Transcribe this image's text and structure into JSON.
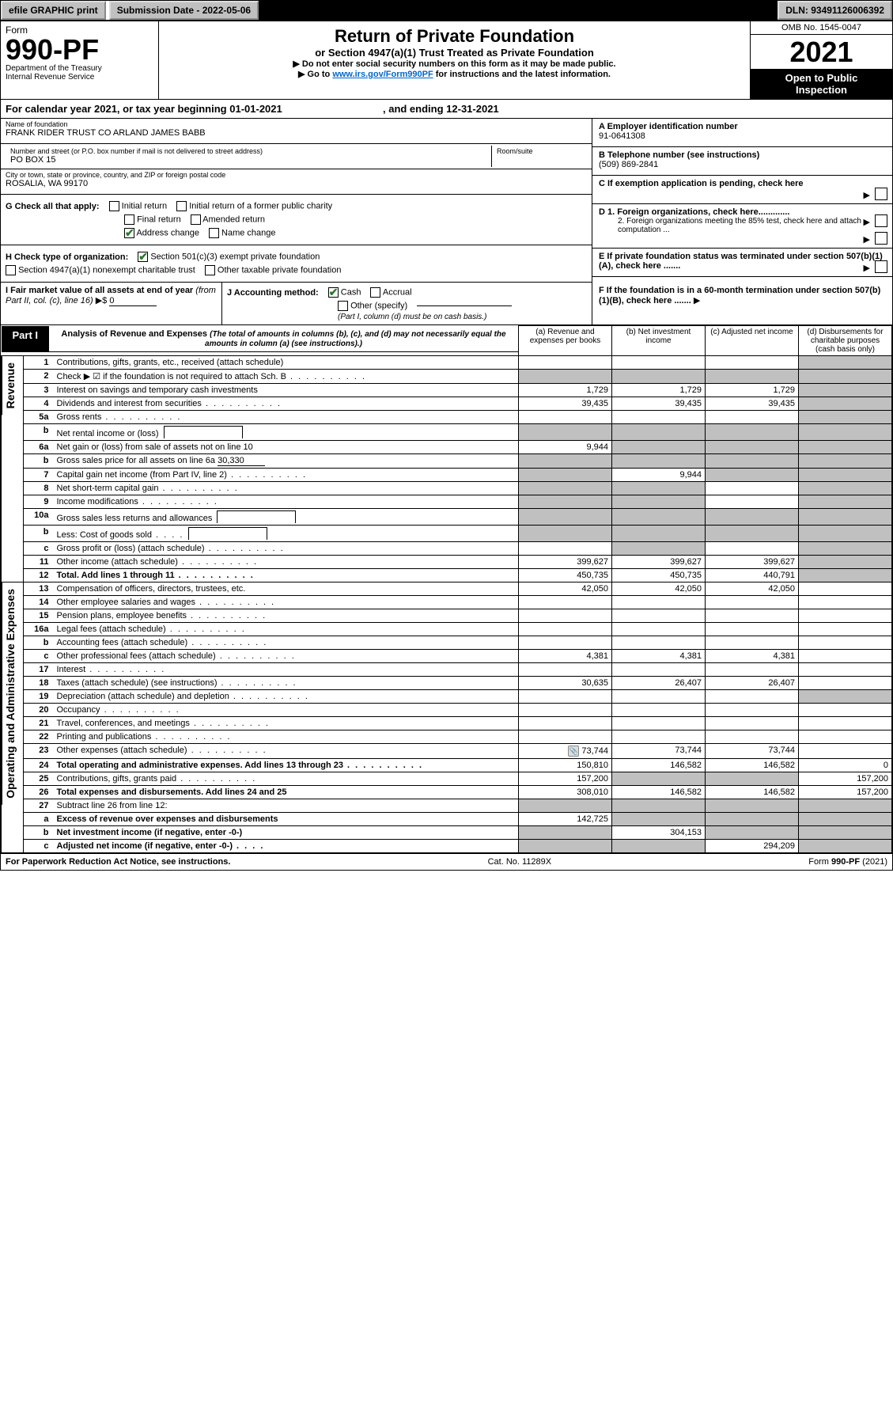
{
  "topbar": {
    "efile": "efile GRAPHIC print",
    "submission": "Submission Date - 2022-05-06",
    "dln": "DLN: 93491126006392"
  },
  "header": {
    "form_word": "Form",
    "form_no": "990-PF",
    "dept1": "Department of the Treasury",
    "dept2": "Internal Revenue Service",
    "title": "Return of Private Foundation",
    "subtitle": "or Section 4947(a)(1) Trust Treated as Private Foundation",
    "instr1": "▶ Do not enter social security numbers on this form as it may be made public.",
    "instr2_a": "▶ Go to ",
    "instr2_link": "www.irs.gov/Form990PF",
    "instr2_b": " for instructions and the latest information.",
    "omb": "OMB No. 1545-0047",
    "year": "2021",
    "inspect1": "Open to Public",
    "inspect2": "Inspection"
  },
  "calendar": {
    "text_a": "For calendar year 2021, or tax year beginning ",
    "begin": "01-01-2021",
    "text_b": " , and ending ",
    "end": "12-31-2021"
  },
  "org": {
    "name_label": "Name of foundation",
    "name": "FRANK RIDER TRUST CO ARLAND JAMES BABB",
    "addr_label": "Number and street (or P.O. box number if mail is not delivered to street address)",
    "addr": "PO BOX 15",
    "room_label": "Room/suite",
    "city_label": "City or town, state or province, country, and ZIP or foreign postal code",
    "city": "ROSALIA, WA  99170",
    "ein_label": "A Employer identification number",
    "ein": "91-0641308",
    "phone_label": "B Telephone number (see instructions)",
    "phone": "(509) 869-2841"
  },
  "boxes": {
    "C": "C If exemption application is pending, check here",
    "D1": "D 1. Foreign organizations, check here.............",
    "D2": "2. Foreign organizations meeting the 85% test, check here and attach computation ...",
    "E": "E  If private foundation status was terminated under section 507(b)(1)(A), check here .......",
    "F": "F  If the foundation is in a 60-month termination under section 507(b)(1)(B), check here .......",
    "G_label": "G Check all that apply:",
    "G_opts": [
      "Initial return",
      "Final return",
      "Address change",
      "Initial return of a former public charity",
      "Amended return",
      "Name change"
    ],
    "G_checked": [
      false,
      false,
      true,
      false,
      false,
      false
    ],
    "H_label": "H Check type of organization:",
    "H_a": "Section 501(c)(3) exempt private foundation",
    "H_b": "Section 4947(a)(1) nonexempt charitable trust",
    "H_c": "Other taxable private foundation",
    "I_label_a": "I Fair market value of all assets at end of year ",
    "I_label_b": "(from Part II, col. (c), line 16)",
    "I_arrow": "▶$",
    "I_val": "0",
    "J_label": "J Accounting method:",
    "J_cash": "Cash",
    "J_accrual": "Accrual",
    "J_other": "Other (specify)",
    "J_note": "(Part I, column (d) must be on cash basis.)"
  },
  "part1": {
    "tab": "Part I",
    "title": "Analysis of Revenue and Expenses",
    "note": " (The total of amounts in columns (b), (c), and (d) may not necessarily equal the amounts in column (a) (see instructions).)",
    "col_a": "(a) Revenue and expenses per books",
    "col_b": "(b) Net investment income",
    "col_c": "(c) Adjusted net income",
    "col_d": "(d) Disbursements for charitable purposes (cash basis only)",
    "revenue_label": "Revenue",
    "expenses_label": "Operating and Administrative Expenses"
  },
  "rows": [
    {
      "n": "1",
      "desc": "Contributions, gifts, grants, etc., received (attach schedule)",
      "a": "",
      "b": "",
      "c": "",
      "d": "",
      "shade": [
        "d"
      ]
    },
    {
      "n": "2",
      "desc": "Check ▶ ☑ if the foundation is not required to attach Sch. B",
      "dots": true,
      "a": "",
      "b": "",
      "c": "",
      "d": "",
      "shade": [
        "a",
        "b",
        "c",
        "d"
      ]
    },
    {
      "n": "3",
      "desc": "Interest on savings and temporary cash investments",
      "a": "1,729",
      "b": "1,729",
      "c": "1,729",
      "d": "",
      "shade": [
        "d"
      ]
    },
    {
      "n": "4",
      "desc": "Dividends and interest from securities",
      "dots": true,
      "a": "39,435",
      "b": "39,435",
      "c": "39,435",
      "d": "",
      "shade": [
        "d"
      ]
    },
    {
      "n": "5a",
      "desc": "Gross rents",
      "dots": true,
      "a": "",
      "b": "",
      "c": "",
      "d": "",
      "shade": [
        "d"
      ]
    },
    {
      "n": "b",
      "desc": "Net rental income or (loss)",
      "inlinebox": true,
      "a": "",
      "b": "",
      "c": "",
      "d": "",
      "shade": [
        "a",
        "b",
        "c",
        "d"
      ]
    },
    {
      "n": "6a",
      "desc": "Net gain or (loss) from sale of assets not on line 10",
      "a": "9,944",
      "b": "",
      "c": "",
      "d": "",
      "shade": [
        "b",
        "c",
        "d"
      ]
    },
    {
      "n": "b",
      "desc": "Gross sales price for all assets on line 6a",
      "inline_val": "30,330",
      "a": "",
      "b": "",
      "c": "",
      "d": "",
      "shade": [
        "a",
        "b",
        "c",
        "d"
      ]
    },
    {
      "n": "7",
      "desc": "Capital gain net income (from Part IV, line 2)",
      "dots": true,
      "a": "",
      "b": "9,944",
      "c": "",
      "d": "",
      "shade": [
        "a",
        "c",
        "d"
      ]
    },
    {
      "n": "8",
      "desc": "Net short-term capital gain",
      "dots": true,
      "a": "",
      "b": "",
      "c": "",
      "d": "",
      "shade": [
        "a",
        "b",
        "d"
      ]
    },
    {
      "n": "9",
      "desc": "Income modifications",
      "dots": true,
      "a": "",
      "b": "",
      "c": "",
      "d": "",
      "shade": [
        "a",
        "b",
        "d"
      ]
    },
    {
      "n": "10a",
      "desc": "Gross sales less returns and allowances",
      "inlinebox": true,
      "a": "",
      "b": "",
      "c": "",
      "d": "",
      "shade": [
        "a",
        "b",
        "c",
        "d"
      ]
    },
    {
      "n": "b",
      "desc": "Less: Cost of goods sold",
      "dots_short": true,
      "inlinebox": true,
      "a": "",
      "b": "",
      "c": "",
      "d": "",
      "shade": [
        "a",
        "b",
        "c",
        "d"
      ]
    },
    {
      "n": "c",
      "desc": "Gross profit or (loss) (attach schedule)",
      "dots": true,
      "a": "",
      "b": "",
      "c": "",
      "d": "",
      "shade": [
        "b",
        "d"
      ]
    },
    {
      "n": "11",
      "desc": "Other income (attach schedule)",
      "dots": true,
      "a": "399,627",
      "b": "399,627",
      "c": "399,627",
      "d": "",
      "shade": [
        "d"
      ]
    },
    {
      "n": "12",
      "desc": "Total. Add lines 1 through 11",
      "dots": true,
      "bold": true,
      "a": "450,735",
      "b": "450,735",
      "c": "440,791",
      "d": "",
      "shade": [
        "d"
      ]
    },
    {
      "n": "13",
      "desc": "Compensation of officers, directors, trustees, etc.",
      "a": "42,050",
      "b": "42,050",
      "c": "42,050",
      "d": ""
    },
    {
      "n": "14",
      "desc": "Other employee salaries and wages",
      "dots": true,
      "a": "",
      "b": "",
      "c": "",
      "d": ""
    },
    {
      "n": "15",
      "desc": "Pension plans, employee benefits",
      "dots": true,
      "a": "",
      "b": "",
      "c": "",
      "d": ""
    },
    {
      "n": "16a",
      "desc": "Legal fees (attach schedule)",
      "dots": true,
      "a": "",
      "b": "",
      "c": "",
      "d": ""
    },
    {
      "n": "b",
      "desc": "Accounting fees (attach schedule)",
      "dots": true,
      "a": "",
      "b": "",
      "c": "",
      "d": ""
    },
    {
      "n": "c",
      "desc": "Other professional fees (attach schedule)",
      "dots": true,
      "a": "4,381",
      "b": "4,381",
      "c": "4,381",
      "d": ""
    },
    {
      "n": "17",
      "desc": "Interest",
      "dots": true,
      "a": "",
      "b": "",
      "c": "",
      "d": ""
    },
    {
      "n": "18",
      "desc": "Taxes (attach schedule) (see instructions)",
      "dots": true,
      "a": "30,635",
      "b": "26,407",
      "c": "26,407",
      "d": ""
    },
    {
      "n": "19",
      "desc": "Depreciation (attach schedule) and depletion",
      "dots": true,
      "a": "",
      "b": "",
      "c": "",
      "d": "",
      "shade": [
        "d"
      ]
    },
    {
      "n": "20",
      "desc": "Occupancy",
      "dots": true,
      "a": "",
      "b": "",
      "c": "",
      "d": ""
    },
    {
      "n": "21",
      "desc": "Travel, conferences, and meetings",
      "dots": true,
      "a": "",
      "b": "",
      "c": "",
      "d": ""
    },
    {
      "n": "22",
      "desc": "Printing and publications",
      "dots": true,
      "a": "",
      "b": "",
      "c": "",
      "d": ""
    },
    {
      "n": "23",
      "desc": "Other expenses (attach schedule)",
      "dots": true,
      "icon": true,
      "a": "73,744",
      "b": "73,744",
      "c": "73,744",
      "d": ""
    },
    {
      "n": "24",
      "desc": "Total operating and administrative expenses. Add lines 13 through 23",
      "dots": true,
      "bold": true,
      "twoline": true,
      "a": "150,810",
      "b": "146,582",
      "c": "146,582",
      "d": "0"
    },
    {
      "n": "25",
      "desc": "Contributions, gifts, grants paid",
      "dots": true,
      "a": "157,200",
      "b": "",
      "c": "",
      "d": "157,200",
      "shade": [
        "b",
        "c"
      ]
    },
    {
      "n": "26",
      "desc": "Total expenses and disbursements. Add lines 24 and 25",
      "bold": true,
      "twoline": true,
      "a": "308,010",
      "b": "146,582",
      "c": "146,582",
      "d": "157,200"
    },
    {
      "n": "27",
      "desc": "Subtract line 26 from line 12:",
      "a": "",
      "b": "",
      "c": "",
      "d": "",
      "shade": [
        "a",
        "b",
        "c",
        "d"
      ]
    },
    {
      "n": "a",
      "desc": "Excess of revenue over expenses and disbursements",
      "bold": true,
      "twoline": true,
      "a": "142,725",
      "b": "",
      "c": "",
      "d": "",
      "shade": [
        "b",
        "c",
        "d"
      ]
    },
    {
      "n": "b",
      "desc": "Net investment income (if negative, enter -0-)",
      "bold": true,
      "a": "",
      "b": "304,153",
      "c": "",
      "d": "",
      "shade": [
        "a",
        "c",
        "d"
      ]
    },
    {
      "n": "c",
      "desc": "Adjusted net income (if negative, enter -0-)",
      "dots_short": true,
      "bold": true,
      "a": "",
      "b": "",
      "c": "294,209",
      "d": "",
      "shade": [
        "a",
        "b",
        "d"
      ]
    }
  ],
  "footer": {
    "left": "For Paperwork Reduction Act Notice, see instructions.",
    "mid": "Cat. No. 11289X",
    "right": "Form 990-PF (2021)"
  },
  "colors": {
    "link": "#0066cc",
    "check": "#2a7a2a",
    "shade": "#c0c0c0"
  }
}
